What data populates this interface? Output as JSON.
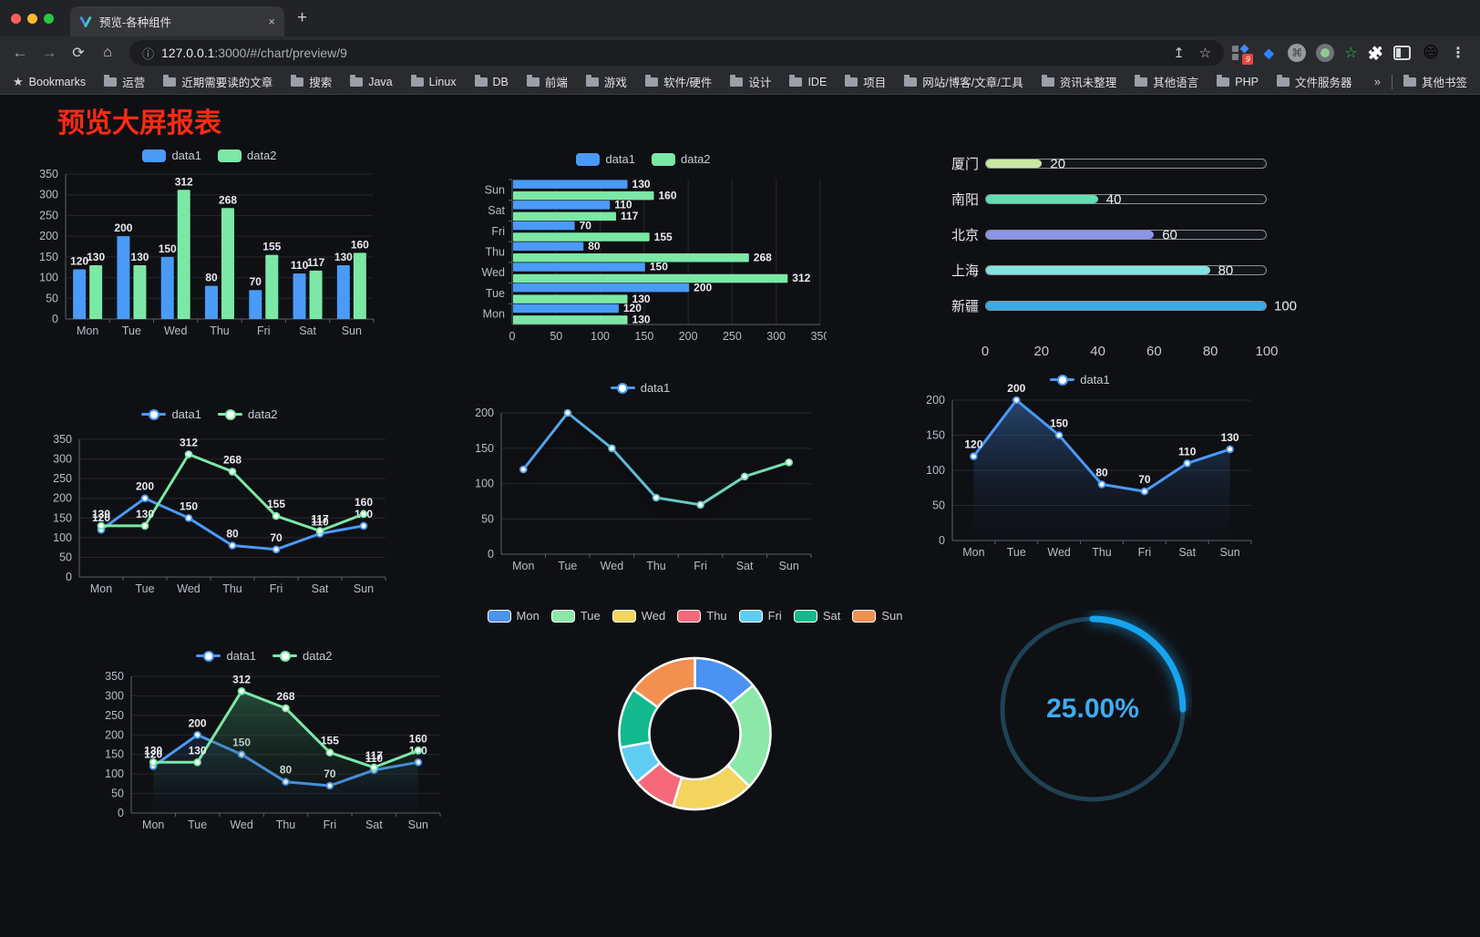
{
  "browser": {
    "tab_title": "预览-各种组件",
    "url_host": "127.0.0.1",
    "url_path": ":3000/#/chart/preview/9",
    "ext_badge": "9",
    "bookmarks": [
      "Bookmarks",
      "运营",
      "近期需要读的文章",
      "搜索",
      "Java",
      "Linux",
      "DB",
      "前端",
      "游戏",
      "软件/硬件",
      "设计",
      "IDE",
      "项目",
      "网站/博客/文章/工具",
      "资讯未整理",
      "其他语言",
      "PHP",
      "文件服务器"
    ],
    "overflow_char": "»",
    "other_bookmarks": "其他书签"
  },
  "icons": {
    "close": "×",
    "plus": "+",
    "back": "←",
    "forward": "→",
    "reload": "⟳",
    "home": "⌂",
    "info": "ⓘ",
    "share": "↥",
    "star": "☆",
    "cmd": "⌘",
    "green_star": "☆",
    "puzzle": "🧩",
    "avatar_emoji": "😄",
    "menu": "⋮",
    "gem": "◆"
  },
  "page": {
    "title": "预览大屏报表",
    "title_color": "#fb2a15"
  },
  "colors": {
    "blue": "#4a9af7",
    "green": "#7ce8a5",
    "grid": "rgba(255,255,255,0.10)",
    "axis": "#5c5f6b",
    "tick": "#b9bcc6",
    "value": "#e9ebf1",
    "page_bg": "#0f1014"
  },
  "chart_data": [
    {
      "id": "bar-vertical",
      "type": "bar",
      "orientation": "vertical",
      "categories": [
        "Mon",
        "Tue",
        "Wed",
        "Thu",
        "Fri",
        "Sat",
        "Sun"
      ],
      "series": [
        {
          "name": "data1",
          "color": "#4a9af7",
          "values": [
            120,
            200,
            150,
            80,
            70,
            110,
            130
          ]
        },
        {
          "name": "data2",
          "color": "#7ce8a5",
          "values": [
            130,
            130,
            312,
            268,
            155,
            117,
            160
          ]
        }
      ],
      "max": 350,
      "tick": 50,
      "labels": true,
      "legend_kind": "swatch",
      "legend_items": [
        {
          "label": "data1",
          "color": "#4a9af7"
        },
        {
          "label": "data2",
          "color": "#7ce8a5"
        }
      ]
    },
    {
      "id": "bar-horizontal",
      "type": "bar",
      "orientation": "horizontal",
      "categories": [
        "Mon",
        "Tue",
        "Wed",
        "Thu",
        "Fri",
        "Sat",
        "Sun"
      ],
      "series": [
        {
          "name": "data1",
          "color": "#4a9af7",
          "values": [
            120,
            200,
            150,
            80,
            70,
            110,
            130
          ]
        },
        {
          "name": "data2",
          "color": "#7ce8a5",
          "values": [
            130,
            130,
            312,
            268,
            155,
            117,
            160
          ]
        }
      ],
      "max": 350,
      "tick": 50,
      "labels": true,
      "legend_kind": "swatch",
      "legend_items": [
        {
          "label": "data1",
          "color": "#4a9af7"
        },
        {
          "label": "data2",
          "color": "#7ce8a5"
        }
      ]
    },
    {
      "id": "progress-bars",
      "type": "bar",
      "subtype": "progress",
      "categories": [
        "厦门",
        "南阳",
        "北京",
        "上海",
        "新疆"
      ],
      "values": [
        20,
        40,
        60,
        80,
        100
      ],
      "colors": [
        "#c9e8a0",
        "#5fe0b0",
        "#8b94e9",
        "#83e4df",
        "#3aabe6"
      ],
      "xticks": [
        0,
        20,
        40,
        60,
        80,
        100
      ],
      "xlim": [
        0,
        100
      ]
    },
    {
      "id": "line-two-series",
      "type": "line",
      "categories": [
        "Mon",
        "Tue",
        "Wed",
        "Thu",
        "Fri",
        "Sat",
        "Sun"
      ],
      "series": [
        {
          "name": "data1",
          "color": "#4a9af7",
          "values": [
            120,
            200,
            150,
            80,
            70,
            110,
            130
          ]
        },
        {
          "name": "data2",
          "color": "#7ce8a5",
          "values": [
            130,
            130,
            312,
            268,
            155,
            117,
            160
          ]
        }
      ],
      "max": 350,
      "tick": 50,
      "labels": true,
      "legend_kind": "line",
      "legend_items": [
        {
          "label": "data1",
          "color": "#4a9af7"
        },
        {
          "label": "data2",
          "color": "#7ce8a5"
        }
      ]
    },
    {
      "id": "line-gradient",
      "type": "line",
      "categories": [
        "Mon",
        "Tue",
        "Wed",
        "Thu",
        "Fri",
        "Sat",
        "Sun"
      ],
      "series": [
        {
          "name": "data1",
          "gradient": [
            "#4a9af7",
            "#7ce8a5"
          ],
          "shadow": true,
          "values": [
            120,
            200,
            150,
            80,
            70,
            110,
            130
          ]
        }
      ],
      "max": 200,
      "tick": 50,
      "labels": false,
      "legend_kind": "line",
      "legend_items": [
        {
          "label": "data1",
          "color": "#4a9af7"
        }
      ]
    },
    {
      "id": "line-area-blue",
      "type": "line",
      "categories": [
        "Mon",
        "Tue",
        "Wed",
        "Thu",
        "Fri",
        "Sat",
        "Sun"
      ],
      "series": [
        {
          "name": "data1",
          "color": "#4a9af7",
          "area": [
            "rgba(54,105,170,0.60)",
            "rgba(20,35,60,0.03)"
          ],
          "values": [
            120,
            200,
            150,
            80,
            70,
            110,
            130
          ]
        }
      ],
      "max": 200,
      "tick": 50,
      "labels": true,
      "legend_kind": "line",
      "legend_items": [
        {
          "label": "data1",
          "color": "#4a9af7"
        }
      ]
    },
    {
      "id": "line-area-two",
      "type": "line",
      "categories": [
        "Mon",
        "Tue",
        "Wed",
        "Thu",
        "Fri",
        "Sat",
        "Sun"
      ],
      "series": [
        {
          "name": "data1",
          "color": "#4a9af7",
          "area": [
            "rgba(54,105,170,0.55)",
            "rgba(20,35,60,0.03)"
          ],
          "values": [
            120,
            200,
            150,
            80,
            70,
            110,
            130
          ]
        },
        {
          "name": "data2",
          "color": "#7ce8a5",
          "area": [
            "rgba(70,160,110,0.50)",
            "rgba(20,50,40,0.03)"
          ],
          "values": [
            130,
            130,
            312,
            268,
            155,
            117,
            160
          ]
        }
      ],
      "max": 350,
      "tick": 50,
      "labels": true,
      "legend_kind": "line",
      "legend_items": [
        {
          "label": "data1",
          "color": "#4a9af7"
        },
        {
          "label": "data2",
          "color": "#7ce8a5"
        }
      ]
    },
    {
      "id": "donut",
      "type": "pie",
      "categories": [
        "Mon",
        "Tue",
        "Wed",
        "Thu",
        "Fri",
        "Sat",
        "Sun"
      ],
      "values": [
        120,
        200,
        150,
        80,
        70,
        110,
        130
      ],
      "colors": [
        "#4b92f2",
        "#8ce8a8",
        "#f2d45f",
        "#f5697b",
        "#5fcdf2",
        "#12b98e",
        "#f29050"
      ],
      "legend_kind": "pie",
      "legend_items": [
        {
          "label": "Mon",
          "color": "#4b92f2"
        },
        {
          "label": "Tue",
          "color": "#8ce8a8"
        },
        {
          "label": "Wed",
          "color": "#f2d45f"
        },
        {
          "label": "Thu",
          "color": "#f5697b"
        },
        {
          "label": "Fri",
          "color": "#5fcdf2"
        },
        {
          "label": "Sat",
          "color": "#12b98e"
        },
        {
          "label": "Sun",
          "color": "#f29050"
        }
      ]
    },
    {
      "id": "gauge",
      "type": "gauge",
      "percent": 25,
      "value_label": "25.00%",
      "color": "#17a3ee",
      "track_color": "#1e4254"
    }
  ]
}
